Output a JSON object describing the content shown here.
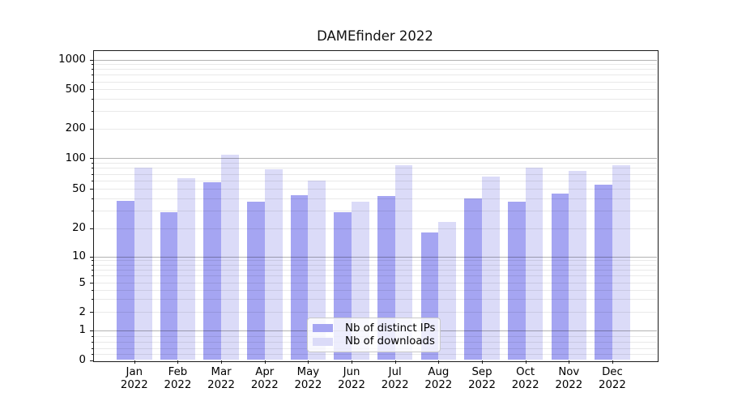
{
  "chart_data": {
    "type": "bar",
    "title": "DAMEfinder 2022",
    "categories": [
      "Jan",
      "Feb",
      "Mar",
      "Apr",
      "May",
      "Jun",
      "Jul",
      "Aug",
      "Sep",
      "Oct",
      "Nov",
      "Dec"
    ],
    "x_year_label": "2022",
    "series": [
      {
        "name": "Nb of distinct IPs",
        "color": "#a5a5f2",
        "values": [
          38,
          29,
          58,
          37,
          43,
          29,
          42,
          18,
          40,
          37,
          45,
          55
        ]
      },
      {
        "name": "Nb of downloads",
        "color": "#dbdbf8",
        "values": [
          80,
          63,
          109,
          78,
          60,
          37,
          85,
          23,
          66,
          80,
          75,
          86
        ]
      }
    ],
    "yscale": "symlog",
    "ytick_labels": [
      "0",
      "1",
      "2",
      "5",
      "10",
      "20",
      "50",
      "100",
      "200",
      "500",
      "1000"
    ],
    "yticks": [
      0,
      1,
      2,
      5,
      10,
      20,
      50,
      100,
      200,
      500,
      1000
    ],
    "ylim": [
      0,
      1250
    ],
    "grid": true,
    "legend_position": "lower center",
    "colors": {
      "major_grid": "#b0b0b0",
      "minor_grid": "#e9e9e9",
      "axis": "#1a1a1a",
      "text": "#000000"
    }
  }
}
